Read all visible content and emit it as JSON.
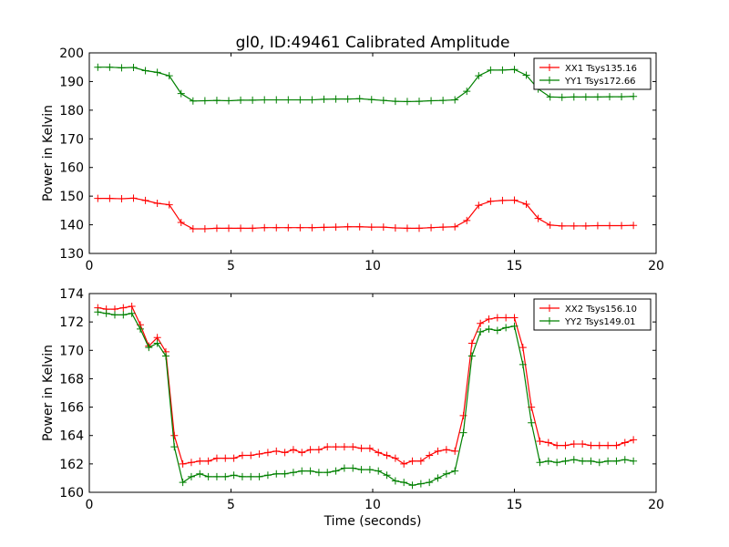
{
  "figure": {
    "title": "gl0, ID:49461 Calibrated Amplitude",
    "xlabel": "Time (seconds)"
  },
  "colors": {
    "red": "#ff0000",
    "green": "#008000"
  },
  "chart_data": [
    {
      "type": "line",
      "ylabel": "Power in Kelvin",
      "xlim": [
        0,
        20
      ],
      "ylim": [
        130,
        200
      ],
      "xticks": [
        "0",
        "5",
        "10",
        "15",
        "20"
      ],
      "yticks": [
        "130",
        "140",
        "150",
        "160",
        "170",
        "180",
        "190",
        "200"
      ],
      "grid": false,
      "legend": "top-right",
      "x": [
        0.3,
        0.72,
        1.14,
        1.56,
        1.98,
        2.4,
        2.82,
        3.24,
        3.66,
        4.08,
        4.5,
        4.92,
        5.34,
        5.76,
        6.18,
        6.6,
        7.02,
        7.44,
        7.86,
        8.28,
        8.7,
        9.12,
        9.54,
        9.96,
        10.38,
        10.8,
        11.22,
        11.64,
        12.06,
        12.48,
        12.9,
        13.32,
        13.74,
        14.16,
        14.58,
        15.0,
        15.42,
        15.84,
        16.26,
        16.68,
        17.1,
        17.52,
        17.94,
        18.36,
        18.78,
        19.2
      ],
      "series": [
        {
          "name": "XX1 Tsys135.16",
          "color": "red",
          "values": [
            149.2,
            149.2,
            149.1,
            149.3,
            148.5,
            147.5,
            147.0,
            140.8,
            138.6,
            138.6,
            138.8,
            138.8,
            138.8,
            138.8,
            139.0,
            139.0,
            139.0,
            139.0,
            139.0,
            139.1,
            139.2,
            139.3,
            139.3,
            139.2,
            139.2,
            138.9,
            138.8,
            138.8,
            139.0,
            139.2,
            139.3,
            141.5,
            146.8,
            148.2,
            148.5,
            148.6,
            147.2,
            142.2,
            139.9,
            139.6,
            139.6,
            139.6,
            139.7,
            139.7,
            139.7,
            139.8
          ]
        },
        {
          "name": "YY1 Tsys172.66",
          "color": "green",
          "values": [
            195.0,
            195.0,
            194.8,
            194.9,
            193.8,
            193.2,
            192.0,
            185.8,
            183.2,
            183.3,
            183.4,
            183.3,
            183.5,
            183.5,
            183.6,
            183.6,
            183.6,
            183.6,
            183.6,
            183.8,
            183.9,
            183.9,
            184.0,
            183.7,
            183.4,
            183.1,
            183.0,
            183.1,
            183.3,
            183.4,
            183.6,
            186.6,
            192.0,
            194.0,
            194.0,
            194.2,
            192.2,
            187.4,
            184.6,
            184.5,
            184.6,
            184.6,
            184.6,
            184.7,
            184.7,
            184.8
          ]
        }
      ]
    },
    {
      "type": "line",
      "ylabel": "Power in Kelvin",
      "xlabel": "Time (seconds)",
      "xlim": [
        0,
        20
      ],
      "ylim": [
        160,
        174
      ],
      "xticks": [
        "0",
        "5",
        "10",
        "15",
        "20"
      ],
      "yticks": [
        "160",
        "162",
        "164",
        "166",
        "168",
        "170",
        "172",
        "174"
      ],
      "grid": false,
      "legend": "top-right",
      "x": [
        0.3,
        0.6,
        0.9,
        1.2,
        1.5,
        1.8,
        2.1,
        2.4,
        2.7,
        3.0,
        3.3,
        3.6,
        3.9,
        4.2,
        4.5,
        4.8,
        5.1,
        5.4,
        5.7,
        6.0,
        6.3,
        6.6,
        6.9,
        7.2,
        7.5,
        7.8,
        8.1,
        8.4,
        8.7,
        9.0,
        9.3,
        9.6,
        9.9,
        10.2,
        10.5,
        10.8,
        11.1,
        11.4,
        11.7,
        12.0,
        12.3,
        12.6,
        12.9,
        13.2,
        13.5,
        13.8,
        14.1,
        14.4,
        14.7,
        15.0,
        15.3,
        15.6,
        15.9,
        16.2,
        16.5,
        16.8,
        17.1,
        17.4,
        17.7,
        18.0,
        18.3,
        18.6,
        18.9,
        19.2
      ],
      "series": [
        {
          "name": "XX2 Tsys156.10",
          "color": "red",
          "values": [
            173.0,
            172.9,
            172.9,
            173.0,
            173.1,
            171.8,
            170.3,
            170.9,
            169.9,
            164.0,
            162.0,
            162.1,
            162.2,
            162.2,
            162.4,
            162.4,
            162.4,
            162.6,
            162.6,
            162.7,
            162.8,
            162.9,
            162.8,
            163.0,
            162.8,
            163.0,
            163.0,
            163.2,
            163.2,
            163.2,
            163.2,
            163.1,
            163.1,
            162.8,
            162.6,
            162.4,
            162.0,
            162.2,
            162.2,
            162.6,
            162.9,
            163.0,
            162.9,
            165.4,
            170.5,
            171.9,
            172.2,
            172.3,
            172.3,
            172.3,
            170.2,
            166.0,
            163.6,
            163.5,
            163.3,
            163.3,
            163.4,
            163.4,
            163.3,
            163.3,
            163.3,
            163.3,
            163.5,
            163.7
          ]
        },
        {
          "name": "YY2 Tsys149.01",
          "color": "green",
          "values": [
            172.7,
            172.6,
            172.5,
            172.5,
            172.6,
            171.5,
            170.2,
            170.5,
            169.6,
            163.2,
            160.7,
            161.1,
            161.3,
            161.1,
            161.1,
            161.1,
            161.2,
            161.1,
            161.1,
            161.1,
            161.2,
            161.3,
            161.3,
            161.4,
            161.5,
            161.5,
            161.4,
            161.4,
            161.5,
            161.7,
            161.7,
            161.6,
            161.6,
            161.5,
            161.2,
            160.8,
            160.7,
            160.5,
            160.6,
            160.7,
            161.0,
            161.3,
            161.5,
            164.2,
            169.6,
            171.3,
            171.5,
            171.4,
            171.6,
            171.7,
            169.0,
            164.9,
            162.1,
            162.2,
            162.1,
            162.2,
            162.3,
            162.2,
            162.2,
            162.1,
            162.2,
            162.2,
            162.3,
            162.2
          ]
        }
      ]
    }
  ]
}
